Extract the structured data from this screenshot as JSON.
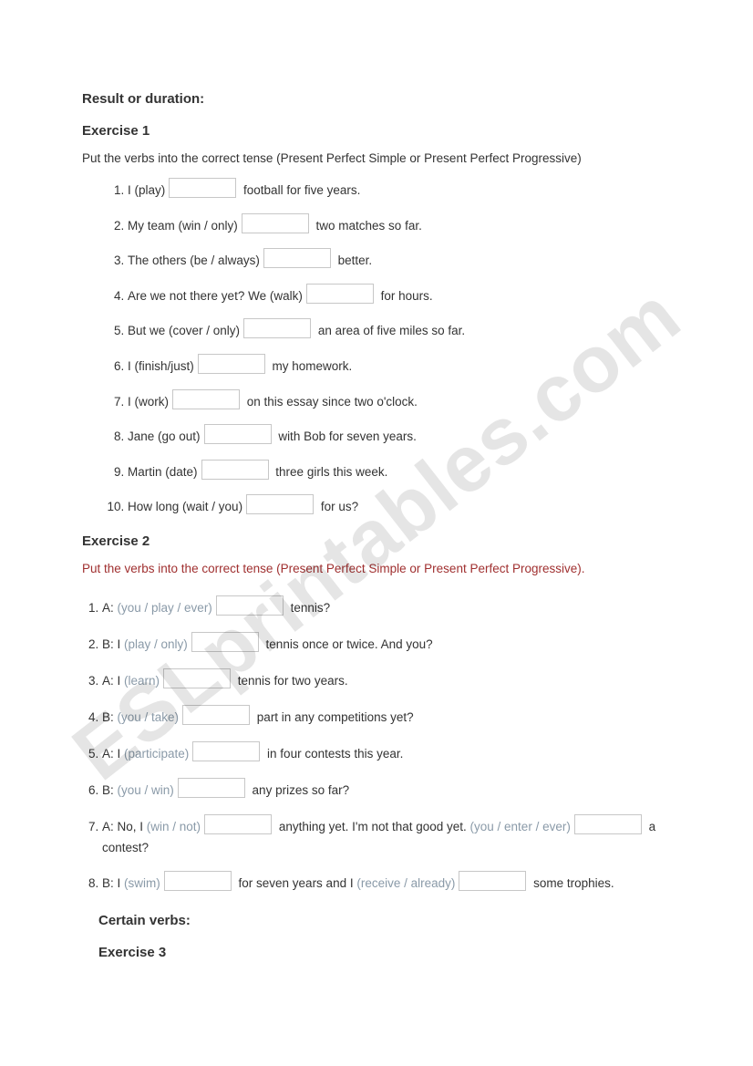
{
  "watermark": "ESLprintables.com",
  "section1_title": "Result or duration:",
  "ex1_title": "Exercise 1",
  "ex1_instr": "Put the verbs into the correct tense (Present Perfect Simple or Present Perfect Progressive)",
  "ex1_items": [
    {
      "pre": "I ",
      "cue": "(play)",
      "post": " football for five years."
    },
    {
      "pre": "My team ",
      "cue": "(win / only)",
      "post": " two matches so far."
    },
    {
      "pre": "The others ",
      "cue": "(be / always)",
      "post": " better."
    },
    {
      "pre": "Are we not there yet? We ",
      "cue": "(walk)",
      "post": " for hours."
    },
    {
      "pre": "But we ",
      "cue": "(cover / only)",
      "post": " an area of five miles so far."
    },
    {
      "pre": "I ",
      "cue": "(finish/just)",
      "post": " my homework."
    },
    {
      "pre": "I ",
      "cue": "(work)",
      "post": " on this essay since two o'clock."
    },
    {
      "pre": "Jane ",
      "cue": "(go out)",
      "post": " with Bob for seven years."
    },
    {
      "pre": "Martin ",
      "cue": "(date)",
      "post": " three girls this week."
    },
    {
      "pre": "How long ",
      "cue": "(wait / you)",
      "post": " for us?"
    }
  ],
  "ex2_title": "Exercise 2",
  "ex2_instr": "Put the verbs into the correct tense (Present Perfect Simple or Present Perfect Progressive).",
  "ex2_items": [
    {
      "parts": [
        {
          "t": "A: "
        },
        {
          "cue": "(you / play / ever)"
        },
        {
          "blank": true
        },
        {
          "t": " tennis?"
        }
      ]
    },
    {
      "parts": [
        {
          "t": "B: I "
        },
        {
          "cue": "(play / only)"
        },
        {
          "blank": true
        },
        {
          "t": " tennis once or twice. And you?"
        }
      ]
    },
    {
      "parts": [
        {
          "t": "A: I "
        },
        {
          "cue": "(learn)"
        },
        {
          "blank": true
        },
        {
          "t": " tennis for two years."
        }
      ]
    },
    {
      "parts": [
        {
          "t": "B: "
        },
        {
          "cue": "(you / take)"
        },
        {
          "blank": true
        },
        {
          "t": " part in any competitions yet?"
        }
      ]
    },
    {
      "parts": [
        {
          "t": "A: I "
        },
        {
          "cue": "(participate)"
        },
        {
          "blank": true
        },
        {
          "t": " in four contests this year."
        }
      ]
    },
    {
      "parts": [
        {
          "t": "B: "
        },
        {
          "cue": "(you / win)"
        },
        {
          "blank": true
        },
        {
          "t": " any prizes so far?"
        }
      ]
    },
    {
      "parts": [
        {
          "t": "A: No, I "
        },
        {
          "cue": "(win / not)"
        },
        {
          "blank": true
        },
        {
          "t": " anything yet. I'm not that good yet. "
        },
        {
          "cue": "(you / enter / ever)"
        },
        {
          "blank": true
        },
        {
          "t": " a contest?"
        }
      ]
    },
    {
      "parts": [
        {
          "t": "B: I "
        },
        {
          "cue": "(swim)"
        },
        {
          "blank": true
        },
        {
          "t": " for seven years and I "
        },
        {
          "cue": "(receive / already)"
        },
        {
          "blank": true
        },
        {
          "t": " some trophies."
        }
      ]
    }
  ],
  "section2_title": "Certain verbs:",
  "ex3_title": "Exercise 3"
}
